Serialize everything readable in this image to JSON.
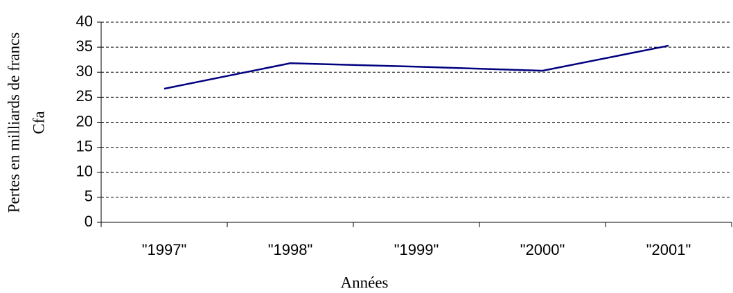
{
  "chart_data": {
    "type": "line",
    "ylabel": [
      "Pertes en milliards de francs",
      "Cfa"
    ],
    "xlabel": "Années",
    "categories": [
      "\"1997\"",
      "\"1998\"",
      "\"1999\"",
      "\"2000\"",
      "\"2001\""
    ],
    "values": [
      26.7,
      31.8,
      31.1,
      30.3,
      35.3
    ],
    "color": "#000080",
    "ylim": [
      0,
      40
    ],
    "yticks": [
      0,
      5,
      10,
      15,
      20,
      25,
      30,
      35,
      40
    ],
    "grid": true
  }
}
